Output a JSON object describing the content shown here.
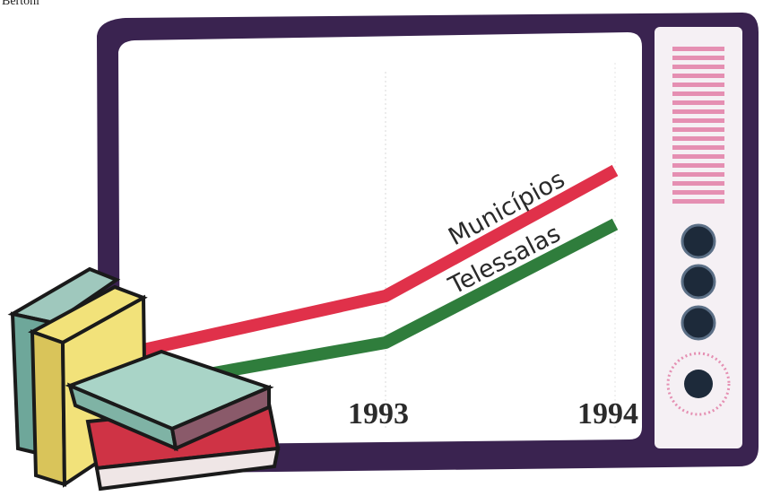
{
  "corner_text": "Bertoni",
  "colors": {
    "frame": "#3a2350",
    "screen": "#ffffff",
    "panel": "#f5f0f4",
    "grille": "#e58fb2",
    "knob": "#1d2a3a",
    "municipios": "#e0314a",
    "telessalas": "#2f7d3c",
    "book_yellow": "#f2e27a",
    "book_teal": "#9fc8bd",
    "book_red": "#cf3345"
  },
  "chart_data": {
    "type": "line",
    "x_categories": [
      "1993",
      "1994"
    ],
    "series": [
      {
        "name": "Municípios",
        "values": [
          0.35,
          0.7
        ]
      },
      {
        "name": "Telessalas",
        "values": [
          0.22,
          0.55
        ]
      }
    ],
    "grid": false,
    "legend": "inline labels at line ends"
  },
  "icons": [
    "television-set",
    "book-stack",
    "speaker-grille",
    "control-knob"
  ]
}
